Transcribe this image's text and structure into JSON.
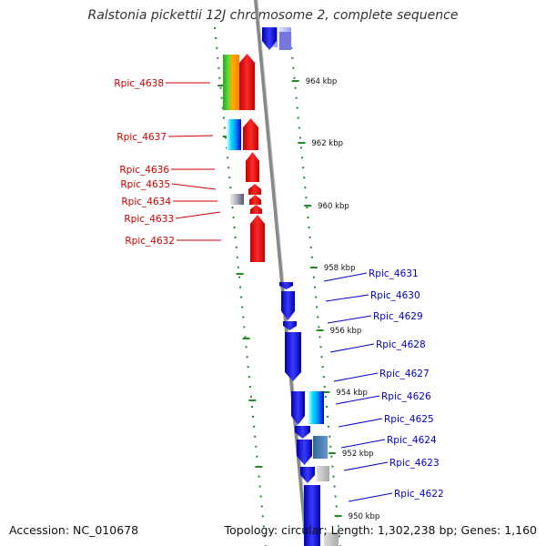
{
  "title": "Ralstonia pickettii 12J chromosome 2, complete sequence",
  "footer": {
    "accession": "Accession: NC_010678",
    "summary": "Topology: circular; Length: 1,302,238 bp; Genes: 1,160"
  },
  "colors": {
    "forward_label": "#cc0000",
    "reverse_label": "#0000cc",
    "scale_ticks": "#228b22",
    "backbone": "#888888"
  },
  "scale_labels": [
    "964 kbp",
    "962 kbp",
    "960 kbp",
    "958 kbp",
    "956 kbp",
    "954 kbp",
    "952 kbp",
    "950 kbp"
  ],
  "forward_genes": [
    "Rpic_4638",
    "Rpic_4637",
    "Rpic_4636",
    "Rpic_4635",
    "Rpic_4634",
    "Rpic_4633",
    "Rpic_4632"
  ],
  "reverse_genes": [
    "Rpic_4631",
    "Rpic_4630",
    "Rpic_4629",
    "Rpic_4628",
    "Rpic_4627",
    "Rpic_4626",
    "Rpic_4625",
    "Rpic_4624",
    "Rpic_4623",
    "Rpic_4622"
  ]
}
